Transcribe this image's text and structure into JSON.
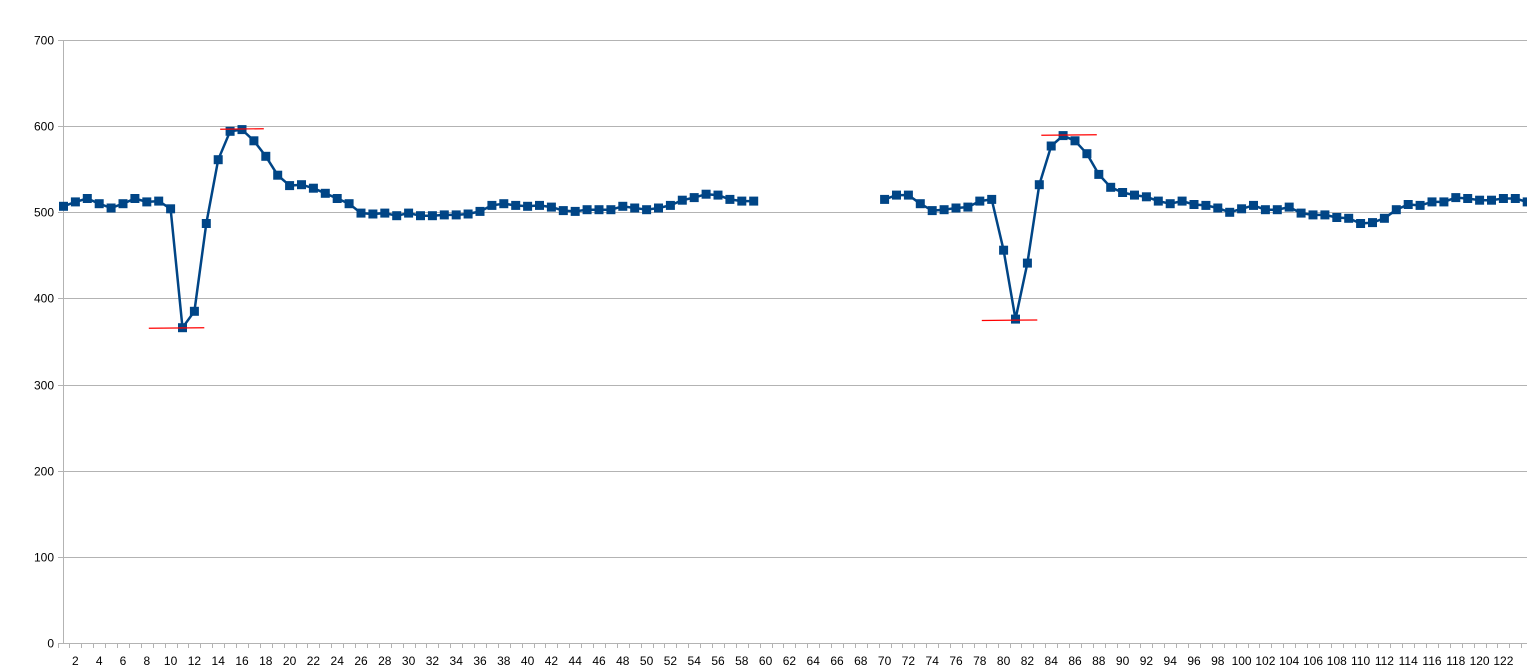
{
  "chart_data": {
    "type": "line",
    "title": "",
    "xlabel": "",
    "ylabel": "",
    "ylim": [
      0,
      700
    ],
    "yticks": [
      0,
      100,
      200,
      300,
      400,
      500,
      600,
      700
    ],
    "x_range": [
      1,
      124
    ],
    "x_labeled_ticks": [
      2,
      4,
      6,
      8,
      10,
      12,
      14,
      16,
      18,
      20,
      22,
      24,
      26,
      28,
      30,
      32,
      34,
      36,
      38,
      40,
      42,
      44,
      46,
      48,
      50,
      52,
      54,
      56,
      58,
      60,
      62,
      64,
      66,
      68,
      70,
      72,
      74,
      76,
      78,
      80,
      82,
      84,
      86,
      88,
      90,
      92,
      94,
      96,
      98,
      100,
      102,
      104,
      106,
      108,
      110,
      112,
      114,
      116,
      118,
      120,
      122
    ],
    "grid": "horizontal",
    "legend": "none",
    "colors": {
      "series": "#004586",
      "marker_lines": "#ff0000",
      "grid": "#b3b3b3"
    },
    "series": [
      {
        "x": [
          1,
          2,
          3,
          4,
          5,
          6,
          7,
          8,
          9,
          10,
          11,
          12,
          13,
          14,
          15,
          16,
          17,
          18,
          19,
          20,
          21,
          22,
          23,
          24,
          25,
          26,
          27,
          28,
          29,
          30,
          31,
          32,
          33,
          34,
          35,
          36,
          37,
          38,
          39,
          40,
          41,
          42,
          43,
          44,
          45,
          46,
          47,
          48,
          49,
          50,
          51,
          52,
          53,
          54,
          55,
          56,
          57,
          58,
          59,
          70,
          71,
          72,
          73,
          74,
          75,
          76,
          77,
          78,
          79,
          80,
          81,
          82,
          83,
          84,
          85,
          86,
          87,
          88,
          89,
          90,
          91,
          92,
          93,
          94,
          95,
          96,
          97,
          98,
          99,
          100,
          101,
          102,
          103,
          104,
          105,
          106,
          107,
          108,
          109,
          110,
          111,
          112,
          113,
          114,
          115,
          116,
          117,
          118,
          119,
          120,
          121,
          122,
          123,
          124
        ],
        "values": [
          507,
          512,
          516,
          510,
          505,
          510,
          516,
          512,
          513,
          504,
          366,
          385,
          487,
          561,
          594,
          596,
          583,
          565,
          543,
          531,
          532,
          528,
          522,
          516,
          510,
          499,
          498,
          499,
          496,
          499,
          496,
          496,
          497,
          497,
          498,
          501,
          508,
          510,
          508,
          507,
          508,
          506,
          502,
          501,
          503,
          503,
          503,
          507,
          505,
          503,
          505,
          508,
          514,
          517,
          521,
          520,
          515,
          513,
          513,
          515,
          520,
          520,
          510,
          502,
          503,
          505,
          506,
          513,
          515,
          456,
          376,
          441,
          532,
          577,
          589,
          583,
          568,
          544,
          529,
          523,
          520,
          518,
          513,
          510,
          513,
          509,
          508,
          505,
          500,
          504,
          508,
          503,
          503,
          506,
          499,
          497,
          497,
          494,
          493,
          487,
          488,
          493,
          503,
          509,
          508,
          512,
          512,
          517,
          516,
          514,
          514,
          516,
          516,
          512
        ]
      }
    ],
    "annotations": [
      {
        "x_from": 8,
        "x_to": 13,
        "y": 366
      },
      {
        "x_from": 14,
        "x_to": 18,
        "y": 597
      },
      {
        "x_from": 78,
        "x_to": 83,
        "y": 375
      },
      {
        "x_from": 83,
        "x_to": 88,
        "y": 590
      }
    ]
  }
}
